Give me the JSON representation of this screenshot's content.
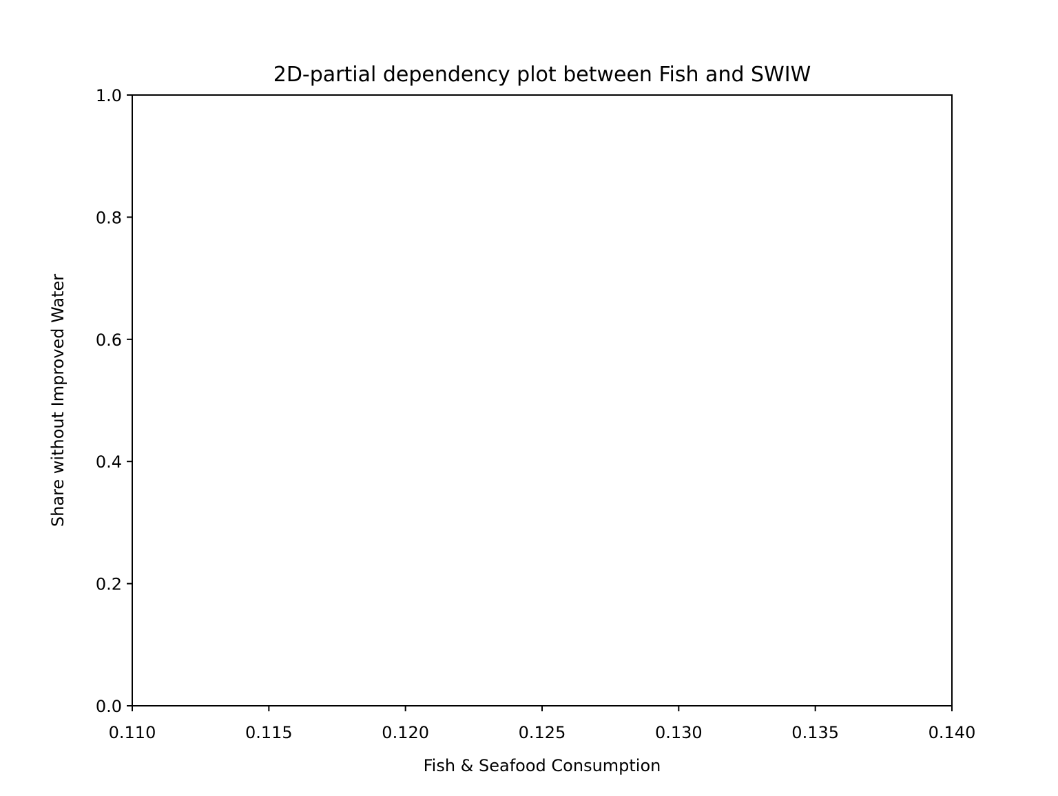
{
  "chart_data": {
    "type": "scatter",
    "title": "2D-partial dependency plot between Fish and SWIW",
    "xlabel": "Fish & Seafood Consumption",
    "ylabel": "Share without Improved Water",
    "xlim": [
      0.11,
      0.14
    ],
    "ylim": [
      0.0,
      1.0
    ],
    "x_ticks": [
      "0.110",
      "0.115",
      "0.120",
      "0.125",
      "0.130",
      "0.135",
      "0.140"
    ],
    "y_ticks": [
      "0.0",
      "0.2",
      "0.4",
      "0.6",
      "0.8",
      "1.0"
    ],
    "series": [],
    "grid": false,
    "legend": "none"
  }
}
